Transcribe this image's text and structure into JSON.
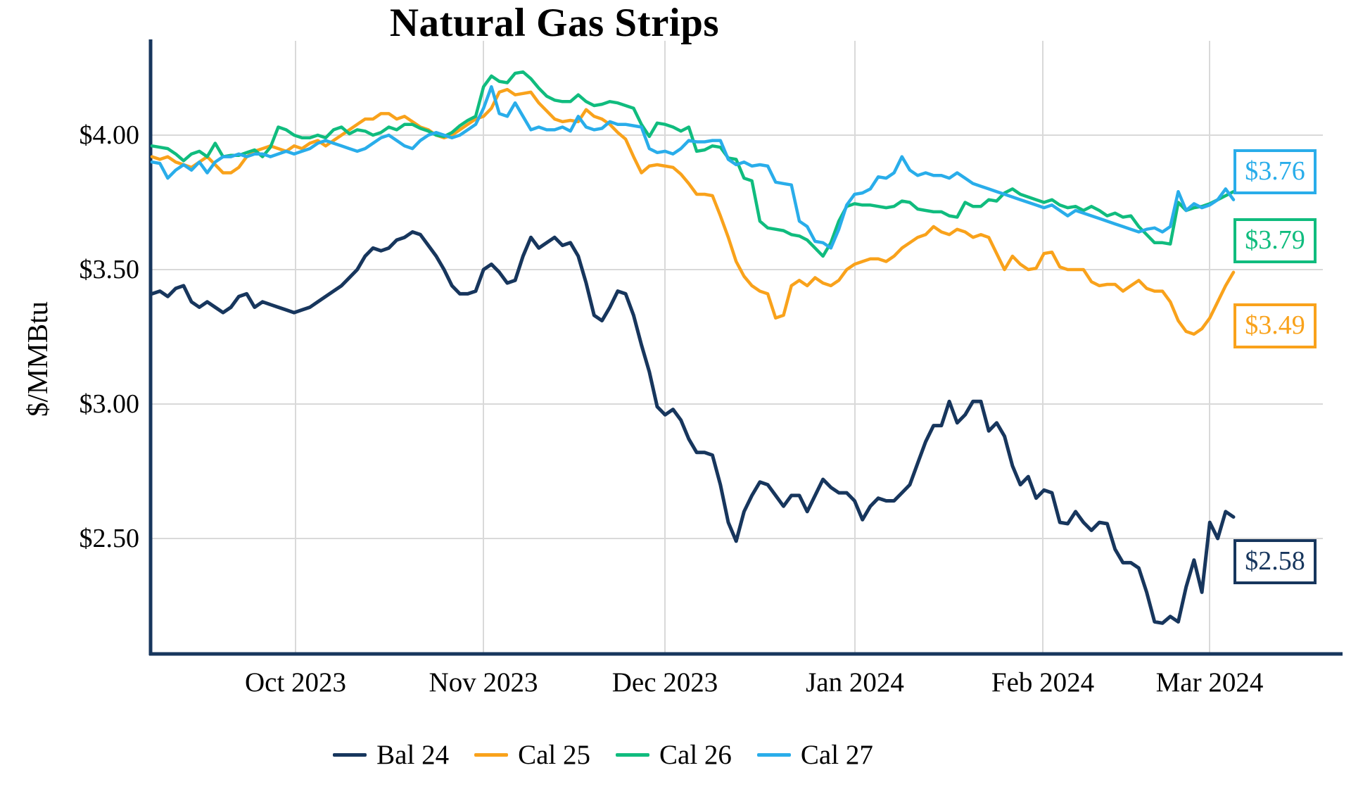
{
  "title": "Natural Gas Strips",
  "y_axis": {
    "label": "$/MMBtu",
    "ticks": [
      "$4.00",
      "$3.50",
      "$3.00",
      "$2.50"
    ]
  },
  "x_axis": {
    "ticks": [
      "Oct 2023",
      "Nov 2023",
      "Dec 2023",
      "Jan 2024",
      "Feb 2024",
      "Mar 2024"
    ]
  },
  "legend": {
    "items": [
      {
        "label": "Bal 24",
        "color": "#17365D"
      },
      {
        "label": "Cal 25",
        "color": "#F9A21B"
      },
      {
        "label": "Cal 26",
        "color": "#10BC7E"
      },
      {
        "label": "Cal 27",
        "color": "#29ADEA"
      }
    ]
  },
  "end_labels": [
    {
      "text": "$3.76",
      "color": "#29ADEA"
    },
    {
      "text": "$3.79",
      "color": "#10BC7E"
    },
    {
      "text": "$3.49",
      "color": "#F9A21B"
    },
    {
      "text": "$2.58",
      "color": "#17365D"
    }
  ],
  "colors": {
    "background": "#FFFFFF",
    "gridline": "#D9D9D9",
    "axis": "#17365D",
    "text": "#000000"
  },
  "chart_data": {
    "type": "line",
    "title": "Natural Gas Strips",
    "xlabel": "",
    "ylabel": "$/MMBtu",
    "ylim": [
      2.07,
      4.35
    ],
    "y_tick_values": [
      4.0,
      3.5,
      3.0,
      2.5
    ],
    "x_tick_labels": [
      "Oct 2023",
      "Nov 2023",
      "Dec 2023",
      "Jan 2024",
      "Feb 2024",
      "Mar 2024"
    ],
    "x_range": "early Sep 2023 to early Mar 2024, daily settlement prices",
    "grid": "on",
    "legend_position": "bottom",
    "series": [
      {
        "name": "Bal 24",
        "color": "#17365D",
        "end_value": 2.58,
        "end_label": "$2.58",
        "values": [
          3.41,
          3.42,
          3.4,
          3.43,
          3.44,
          3.38,
          3.36,
          3.38,
          3.36,
          3.34,
          3.36,
          3.4,
          3.41,
          3.36,
          3.38,
          3.37,
          3.36,
          3.35,
          3.34,
          3.35,
          3.36,
          3.38,
          3.4,
          3.42,
          3.44,
          3.47,
          3.5,
          3.55,
          3.58,
          3.57,
          3.58,
          3.61,
          3.62,
          3.64,
          3.63,
          3.59,
          3.55,
          3.5,
          3.44,
          3.41,
          3.41,
          3.42,
          3.5,
          3.52,
          3.49,
          3.45,
          3.46,
          3.55,
          3.62,
          3.58,
          3.6,
          3.62,
          3.59,
          3.6,
          3.55,
          3.45,
          3.33,
          3.31,
          3.36,
          3.42,
          3.41,
          3.33,
          3.22,
          3.12,
          2.99,
          2.96,
          2.98,
          2.94,
          2.87,
          2.82,
          2.82,
          2.81,
          2.7,
          2.56,
          2.49,
          2.6,
          2.66,
          2.71,
          2.7,
          2.66,
          2.62,
          2.66,
          2.66,
          2.6,
          2.66,
          2.72,
          2.69,
          2.67,
          2.67,
          2.64,
          2.57,
          2.62,
          2.65,
          2.64,
          2.64,
          2.67,
          2.7,
          2.78,
          2.86,
          2.92,
          2.92,
          3.01,
          2.93,
          2.96,
          3.01,
          3.01,
          2.9,
          2.93,
          2.88,
          2.77,
          2.7,
          2.73,
          2.65,
          2.68,
          2.67,
          2.56,
          2.555,
          2.6,
          2.56,
          2.53,
          2.56,
          2.555,
          2.46,
          2.41,
          2.41,
          2.39,
          2.3,
          2.19,
          2.185,
          2.21,
          2.19,
          2.32,
          2.42,
          2.3,
          2.56,
          2.5,
          2.6,
          2.58
        ]
      },
      {
        "name": "Cal 25",
        "color": "#F9A21B",
        "end_value": 3.49,
        "end_label": "$3.49",
        "values": [
          3.92,
          3.91,
          3.92,
          3.9,
          3.89,
          3.88,
          3.9,
          3.92,
          3.89,
          3.86,
          3.86,
          3.88,
          3.92,
          3.94,
          3.95,
          3.96,
          3.95,
          3.94,
          3.96,
          3.95,
          3.97,
          3.98,
          3.96,
          3.98,
          4.0,
          4.02,
          4.04,
          4.06,
          4.06,
          4.08,
          4.08,
          4.06,
          4.07,
          4.05,
          4.03,
          4.02,
          4.0,
          3.99,
          4.0,
          4.02,
          4.04,
          4.06,
          4.07,
          4.1,
          4.16,
          4.17,
          4.15,
          4.155,
          4.16,
          4.12,
          4.09,
          4.06,
          4.05,
          4.055,
          4.05,
          4.095,
          4.07,
          4.06,
          4.04,
          4.01,
          3.985,
          3.92,
          3.86,
          3.885,
          3.89,
          3.885,
          3.88,
          3.855,
          3.82,
          3.78,
          3.78,
          3.775,
          3.7,
          3.62,
          3.53,
          3.475,
          3.44,
          3.42,
          3.41,
          3.32,
          3.33,
          3.44,
          3.46,
          3.44,
          3.47,
          3.45,
          3.44,
          3.46,
          3.5,
          3.52,
          3.53,
          3.54,
          3.54,
          3.53,
          3.55,
          3.58,
          3.6,
          3.62,
          3.63,
          3.66,
          3.64,
          3.63,
          3.65,
          3.64,
          3.62,
          3.63,
          3.62,
          3.56,
          3.5,
          3.55,
          3.52,
          3.5,
          3.505,
          3.56,
          3.565,
          3.51,
          3.5,
          3.5,
          3.5,
          3.455,
          3.44,
          3.445,
          3.445,
          3.42,
          3.44,
          3.46,
          3.43,
          3.42,
          3.42,
          3.38,
          3.31,
          3.27,
          3.26,
          3.28,
          3.32,
          3.38,
          3.44,
          3.49
        ]
      },
      {
        "name": "Cal 26",
        "color": "#10BC7E",
        "end_value": 3.79,
        "end_label": "$3.79",
        "values": [
          3.96,
          3.955,
          3.95,
          3.93,
          3.905,
          3.93,
          3.94,
          3.92,
          3.97,
          3.92,
          3.925,
          3.925,
          3.935,
          3.945,
          3.92,
          3.955,
          4.03,
          4.02,
          4.0,
          3.99,
          3.99,
          4.0,
          3.99,
          4.02,
          4.03,
          4.005,
          4.02,
          4.015,
          4.0,
          4.01,
          4.03,
          4.02,
          4.04,
          4.04,
          4.025,
          4.015,
          4.0,
          3.995,
          4.01,
          4.035,
          4.055,
          4.07,
          4.18,
          4.22,
          4.2,
          4.195,
          4.23,
          4.235,
          4.21,
          4.175,
          4.145,
          4.13,
          4.125,
          4.125,
          4.15,
          4.125,
          4.11,
          4.115,
          4.125,
          4.12,
          4.11,
          4.1,
          4.04,
          3.995,
          4.045,
          4.04,
          4.03,
          4.015,
          4.03,
          3.94,
          3.945,
          3.96,
          3.955,
          3.915,
          3.91,
          3.84,
          3.83,
          3.68,
          3.655,
          3.65,
          3.645,
          3.63,
          3.625,
          3.61,
          3.58,
          3.55,
          3.6,
          3.68,
          3.735,
          3.745,
          3.74,
          3.74,
          3.735,
          3.73,
          3.735,
          3.755,
          3.75,
          3.725,
          3.72,
          3.715,
          3.715,
          3.7,
          3.695,
          3.75,
          3.735,
          3.735,
          3.76,
          3.755,
          3.785,
          3.8,
          3.78,
          3.77,
          3.76,
          3.75,
          3.76,
          3.74,
          3.73,
          3.735,
          3.72,
          3.735,
          3.72,
          3.7,
          3.71,
          3.695,
          3.7,
          3.66,
          3.63,
          3.6,
          3.6,
          3.595,
          3.75,
          3.72,
          3.73,
          3.735,
          3.745,
          3.76,
          3.775,
          3.79
        ]
      },
      {
        "name": "Cal 27",
        "color": "#29ADEA",
        "end_value": 3.76,
        "end_label": "$3.76",
        "values": [
          3.9,
          3.895,
          3.84,
          3.87,
          3.89,
          3.87,
          3.9,
          3.86,
          3.9,
          3.92,
          3.92,
          3.93,
          3.92,
          3.93,
          3.93,
          3.92,
          3.93,
          3.94,
          3.93,
          3.94,
          3.95,
          3.97,
          3.98,
          3.97,
          3.96,
          3.95,
          3.94,
          3.95,
          3.97,
          3.99,
          4.0,
          3.98,
          3.96,
          3.95,
          3.98,
          4.0,
          4.01,
          4.0,
          3.99,
          4.0,
          4.02,
          4.04,
          4.1,
          4.18,
          4.08,
          4.07,
          4.12,
          4.07,
          4.02,
          4.03,
          4.02,
          4.02,
          4.03,
          4.015,
          4.07,
          4.03,
          4.02,
          4.025,
          4.05,
          4.04,
          4.04,
          4.035,
          4.03,
          3.95,
          3.935,
          3.94,
          3.93,
          3.95,
          3.98,
          3.975,
          3.975,
          3.98,
          3.98,
          3.91,
          3.89,
          3.9,
          3.885,
          3.89,
          3.885,
          3.825,
          3.82,
          3.815,
          3.68,
          3.66,
          3.605,
          3.6,
          3.58,
          3.65,
          3.74,
          3.78,
          3.785,
          3.8,
          3.845,
          3.84,
          3.86,
          3.92,
          3.87,
          3.85,
          3.86,
          3.85,
          3.85,
          3.84,
          3.86,
          3.84,
          3.82,
          3.81,
          3.8,
          3.79,
          3.78,
          3.77,
          3.76,
          3.75,
          3.74,
          3.73,
          3.74,
          3.72,
          3.7,
          3.72,
          3.71,
          3.7,
          3.69,
          3.68,
          3.67,
          3.66,
          3.65,
          3.64,
          3.65,
          3.655,
          3.64,
          3.66,
          3.79,
          3.72,
          3.745,
          3.73,
          3.74,
          3.76,
          3.8,
          3.76
        ]
      }
    ]
  }
}
